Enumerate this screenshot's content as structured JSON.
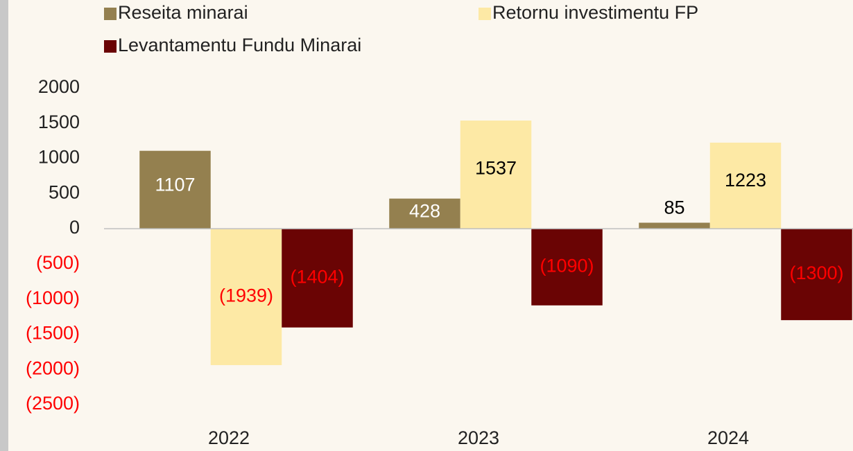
{
  "chart_data": {
    "type": "bar",
    "categories": [
      "2022",
      "2023",
      "2024"
    ],
    "series": [
      {
        "name": "Reseita minarai",
        "color": "#94804f",
        "label_color": "#ffffff",
        "values": [
          1107,
          428,
          85
        ]
      },
      {
        "name": "Retornu investimentu FP",
        "color": "#fde9a5",
        "label_color": "#000000",
        "values": [
          -1939,
          1537,
          1223
        ],
        "value_labels": [
          "(1939)",
          "1537",
          "1223"
        ]
      },
      {
        "name": "Levantamentu Fundu Minarai",
        "color": "#6a0404",
        "label_color": "#ffffff",
        "values": [
          -1404,
          -1090,
          -1300
        ],
        "value_labels": [
          "(1404)",
          "(1090)",
          "(1300)"
        ]
      }
    ],
    "negative_color": "#ff0000",
    "ylim": [
      -2500,
      2000
    ],
    "yticks": [
      2000,
      1500,
      1000,
      500,
      0,
      {
        "value": -500,
        "label": "(500)"
      },
      {
        "value": -1000,
        "label": "(1000)"
      },
      {
        "value": -1500,
        "label": "(1500)"
      },
      {
        "value": -2000,
        "label": "(2000)"
      },
      {
        "value": -2500,
        "label": "(2500)"
      }
    ],
    "grid": false
  }
}
